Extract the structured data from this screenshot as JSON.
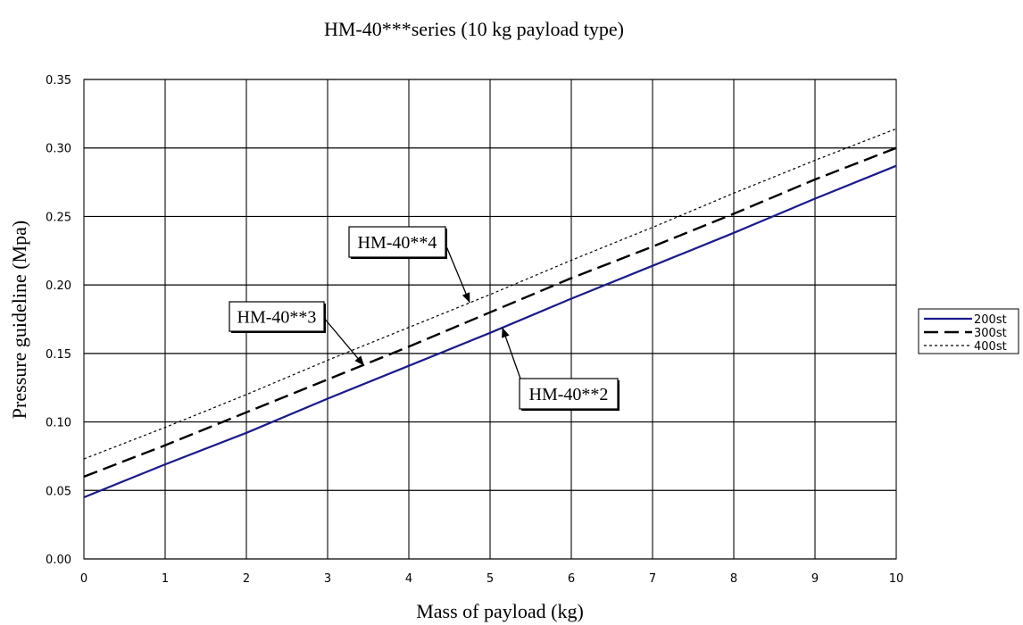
{
  "chart_data": {
    "type": "line",
    "title": "HM-40***series (10 kg payload type)",
    "xlabel": "Mass of payload (kg)",
    "ylabel": "Pressure guideline (Mpa)",
    "xlim": [
      0,
      10
    ],
    "ylim": [
      0,
      0.35
    ],
    "x_ticks": [
      "0",
      "1",
      "2",
      "3",
      "4",
      "5",
      "6",
      "7",
      "8",
      "9",
      "10"
    ],
    "y_ticks": [
      "0.00",
      "0.05",
      "0.10",
      "0.15",
      "0.20",
      "0.25",
      "0.30",
      "0.35"
    ],
    "grid": true,
    "legend_position": "right",
    "x": [
      0,
      1,
      2,
      3,
      4,
      5,
      6,
      7,
      8,
      9,
      10
    ],
    "series": [
      {
        "name": "200st",
        "color": "#1a1a8c",
        "style": "solid",
        "values": [
          0.045,
          0.069,
          0.092,
          0.117,
          0.141,
          0.165,
          0.19,
          0.214,
          0.238,
          0.263,
          0.287
        ]
      },
      {
        "name": "300st",
        "color": "#000000",
        "style": "dashed",
        "values": [
          0.06,
          0.083,
          0.107,
          0.131,
          0.155,
          0.18,
          0.205,
          0.228,
          0.252,
          0.277,
          0.3
        ]
      },
      {
        "name": "400st",
        "color": "#000000",
        "style": "dotted",
        "values": [
          0.073,
          0.096,
          0.12,
          0.145,
          0.169,
          0.193,
          0.218,
          0.242,
          0.267,
          0.291,
          0.314
        ]
      }
    ],
    "annotations": [
      {
        "text": "HM-40**4",
        "point_x": 4.75,
        "point_y": 0.187
      },
      {
        "text": "HM-40**3",
        "point_x": 3.45,
        "point_y": 0.141
      },
      {
        "text": "HM-40**2",
        "point_x": 5.15,
        "point_y": 0.169
      }
    ]
  }
}
